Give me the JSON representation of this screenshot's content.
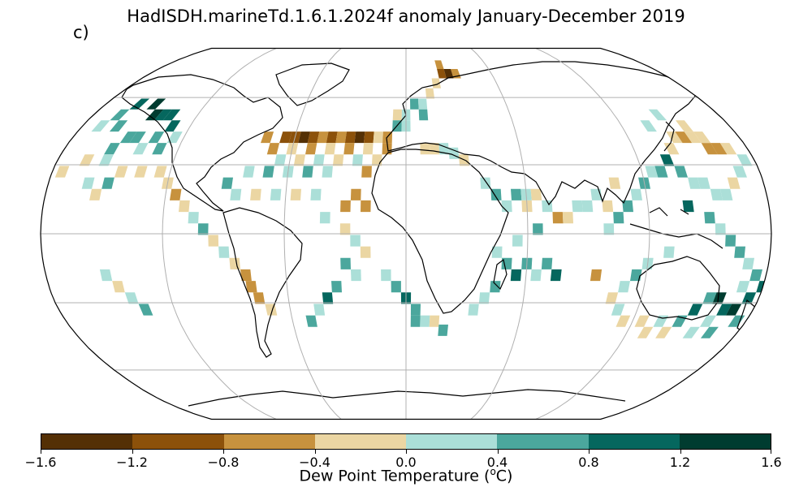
{
  "title": "HadISDH.marineTd.1.6.1.2024f anomaly January-December 2019",
  "panel_label": "c)",
  "colorbar": {
    "label_prefix": "Dew Point Temperature (",
    "label_sup": "o",
    "label_suffix": "C)",
    "ticks": [
      "−1.6",
      "−1.2",
      "−0.8",
      "−0.4",
      "0.0",
      "0.4",
      "0.8",
      "1.2",
      "1.6"
    ],
    "colors": [
      "#543005",
      "#8c510a",
      "#c7923e",
      "#ebd6a3",
      "#abdfd8",
      "#4ba79d",
      "#05675e",
      "#003c30"
    ]
  },
  "map_data": {
    "projection": "Robinson",
    "grid_cell_deg": 5,
    "cells": [
      {
        "lon": -160,
        "lat": 57,
        "bin": 6
      },
      {
        "lon": -150,
        "lat": 57,
        "bin": 7
      },
      {
        "lon": -145,
        "lat": 52,
        "bin": 7
      },
      {
        "lon": -140,
        "lat": 52,
        "bin": 6
      },
      {
        "lon": -135,
        "lat": 52,
        "bin": 6
      },
      {
        "lon": -130,
        "lat": 47,
        "bin": 6
      },
      {
        "lon": -165,
        "lat": 52,
        "bin": 5
      },
      {
        "lon": -170,
        "lat": 47,
        "bin": 4
      },
      {
        "lon": -160,
        "lat": 47,
        "bin": 5
      },
      {
        "lon": -150,
        "lat": 42,
        "bin": 5
      },
      {
        "lon": -145,
        "lat": 42,
        "bin": 5
      },
      {
        "lon": -140,
        "lat": 37,
        "bin": 4
      },
      {
        "lon": -135,
        "lat": 42,
        "bin": 5
      },
      {
        "lon": -130,
        "lat": 37,
        "bin": 5
      },
      {
        "lon": -125,
        "lat": 42,
        "bin": 4
      },
      {
        "lon": -155,
        "lat": 37,
        "bin": 5
      },
      {
        "lon": -165,
        "lat": 32,
        "bin": 3
      },
      {
        "lon": -155,
        "lat": 32,
        "bin": 4
      },
      {
        "lon": -175,
        "lat": 27,
        "bin": 3
      },
      {
        "lon": -145,
        "lat": 27,
        "bin": 3
      },
      {
        "lon": -135,
        "lat": 27,
        "bin": 3
      },
      {
        "lon": -125,
        "lat": 27,
        "bin": 3
      },
      {
        "lon": -120,
        "lat": 22,
        "bin": 3
      },
      {
        "lon": -115,
        "lat": 17,
        "bin": 2
      },
      {
        "lon": -160,
        "lat": 22,
        "bin": 4
      },
      {
        "lon": -150,
        "lat": 22,
        "bin": 5
      },
      {
        "lon": -155,
        "lat": 17,
        "bin": 3
      },
      {
        "lon": -110,
        "lat": 12,
        "bin": 3
      },
      {
        "lon": -105,
        "lat": 7,
        "bin": 4
      },
      {
        "lon": -100,
        "lat": 2,
        "bin": 5
      },
      {
        "lon": -95,
        "lat": -3,
        "bin": 3
      },
      {
        "lon": -90,
        "lat": -8,
        "bin": 4
      },
      {
        "lon": -85,
        "lat": -13,
        "bin": 3
      },
      {
        "lon": -80,
        "lat": -18,
        "bin": 2
      },
      {
        "lon": -78,
        "lat": -23,
        "bin": 2
      },
      {
        "lon": -75,
        "lat": -28,
        "bin": 2
      },
      {
        "lon": -70,
        "lat": -33,
        "bin": 3
      },
      {
        "lon": -150,
        "lat": -18,
        "bin": 4
      },
      {
        "lon": -145,
        "lat": -23,
        "bin": 3
      },
      {
        "lon": -140,
        "lat": -28,
        "bin": 4
      },
      {
        "lon": -135,
        "lat": -33,
        "bin": 5
      },
      {
        "lon": -75,
        "lat": 42,
        "bin": 2
      },
      {
        "lon": -65,
        "lat": 42,
        "bin": 1
      },
      {
        "lon": -60,
        "lat": 42,
        "bin": 1
      },
      {
        "lon": -55,
        "lat": 42,
        "bin": 0
      },
      {
        "lon": -50,
        "lat": 42,
        "bin": 1
      },
      {
        "lon": -45,
        "lat": 42,
        "bin": 2
      },
      {
        "lon": -40,
        "lat": 42,
        "bin": 1
      },
      {
        "lon": -35,
        "lat": 42,
        "bin": 2
      },
      {
        "lon": -30,
        "lat": 42,
        "bin": 1
      },
      {
        "lon": -25,
        "lat": 42,
        "bin": 0
      },
      {
        "lon": -20,
        "lat": 42,
        "bin": 1
      },
      {
        "lon": -15,
        "lat": 42,
        "bin": 3
      },
      {
        "lon": -10,
        "lat": 42,
        "bin": 2
      },
      {
        "lon": -70,
        "lat": 37,
        "bin": 2
      },
      {
        "lon": -60,
        "lat": 37,
        "bin": 3
      },
      {
        "lon": -50,
        "lat": 37,
        "bin": 2
      },
      {
        "lon": -40,
        "lat": 37,
        "bin": 3
      },
      {
        "lon": -30,
        "lat": 37,
        "bin": 2
      },
      {
        "lon": -20,
        "lat": 37,
        "bin": 3
      },
      {
        "lon": -10,
        "lat": 37,
        "bin": 2
      },
      {
        "lon": -65,
        "lat": 32,
        "bin": 4
      },
      {
        "lon": -55,
        "lat": 32,
        "bin": 3
      },
      {
        "lon": -45,
        "lat": 32,
        "bin": 4
      },
      {
        "lon": -35,
        "lat": 32,
        "bin": 3
      },
      {
        "lon": -25,
        "lat": 32,
        "bin": 4
      },
      {
        "lon": -15,
        "lat": 32,
        "bin": 3
      },
      {
        "lon": -80,
        "lat": 27,
        "bin": 4
      },
      {
        "lon": -70,
        "lat": 27,
        "bin": 5
      },
      {
        "lon": -60,
        "lat": 27,
        "bin": 4
      },
      {
        "lon": -50,
        "lat": 27,
        "bin": 5
      },
      {
        "lon": -40,
        "lat": 27,
        "bin": 4
      },
      {
        "lon": -20,
        "lat": 27,
        "bin": 2
      },
      {
        "lon": -90,
        "lat": 22,
        "bin": 5
      },
      {
        "lon": -85,
        "lat": 17,
        "bin": 4
      },
      {
        "lon": -75,
        "lat": 17,
        "bin": 3
      },
      {
        "lon": -65,
        "lat": 17,
        "bin": 4
      },
      {
        "lon": -55,
        "lat": 17,
        "bin": 3
      },
      {
        "lon": -45,
        "lat": 17,
        "bin": 4
      },
      {
        "lon": -25,
        "lat": 17,
        "bin": 2
      },
      {
        "lon": -20,
        "lat": 12,
        "bin": 2
      },
      {
        "lon": -30,
        "lat": 12,
        "bin": 2
      },
      {
        "lon": -40,
        "lat": 7,
        "bin": 4
      },
      {
        "lon": -30,
        "lat": 2,
        "bin": 3
      },
      {
        "lon": -25,
        "lat": -3,
        "bin": 4
      },
      {
        "lon": -20,
        "lat": -8,
        "bin": 3
      },
      {
        "lon": -30,
        "lat": -13,
        "bin": 5
      },
      {
        "lon": -25,
        "lat": -18,
        "bin": 4
      },
      {
        "lon": -35,
        "lat": -23,
        "bin": 5
      },
      {
        "lon": -40,
        "lat": -28,
        "bin": 6
      },
      {
        "lon": -45,
        "lat": -33,
        "bin": 4
      },
      {
        "lon": -50,
        "lat": -38,
        "bin": 5
      },
      {
        "lon": -10,
        "lat": -18,
        "bin": 4
      },
      {
        "lon": -5,
        "lat": -23,
        "bin": 5
      },
      {
        "lon": 0,
        "lat": -28,
        "bin": 6
      },
      {
        "lon": 5,
        "lat": -33,
        "bin": 5
      },
      {
        "lon": 10,
        "lat": -38,
        "bin": 4
      },
      {
        "lon": 5,
        "lat": -38,
        "bin": 5
      },
      {
        "lon": 15,
        "lat": -38,
        "bin": 3
      },
      {
        "lon": 20,
        "lat": -42,
        "bin": 5
      },
      {
        "lon": 0,
        "lat": 52,
        "bin": 4
      },
      {
        "lon": -5,
        "lat": 52,
        "bin": 3
      },
      {
        "lon": 5,
        "lat": 57,
        "bin": 5
      },
      {
        "lon": 10,
        "lat": 57,
        "bin": 4
      },
      {
        "lon": 15,
        "lat": 62,
        "bin": 3
      },
      {
        "lon": 20,
        "lat": 67,
        "bin": 3
      },
      {
        "lon": 25,
        "lat": 72,
        "bin": 1
      },
      {
        "lon": 30,
        "lat": 72,
        "bin": 0
      },
      {
        "lon": 35,
        "lat": 72,
        "bin": 2
      },
      {
        "lon": 25,
        "lat": 77,
        "bin": 2
      },
      {
        "lon": 10,
        "lat": 52,
        "bin": 5
      },
      {
        "lon": 0,
        "lat": 47,
        "bin": 4
      },
      {
        "lon": -5,
        "lat": 47,
        "bin": 5
      },
      {
        "lon": 10,
        "lat": 37,
        "bin": 3
      },
      {
        "lon": 15,
        "lat": 37,
        "bin": 3
      },
      {
        "lon": 20,
        "lat": 37,
        "bin": 4
      },
      {
        "lon": 25,
        "lat": 35,
        "bin": 4
      },
      {
        "lon": 30,
        "lat": 32,
        "bin": 3
      },
      {
        "lon": 40,
        "lat": 22,
        "bin": 4
      },
      {
        "lon": 45,
        "lat": 17,
        "bin": 5
      },
      {
        "lon": 50,
        "lat": 12,
        "bin": 4
      },
      {
        "lon": 55,
        "lat": 17,
        "bin": 5
      },
      {
        "lon": 60,
        "lat": 17,
        "bin": 4
      },
      {
        "lon": 65,
        "lat": 17,
        "bin": 3
      },
      {
        "lon": 60,
        "lat": 12,
        "bin": 3
      },
      {
        "lon": 70,
        "lat": 12,
        "bin": 4
      },
      {
        "lon": 75,
        "lat": 7,
        "bin": 2
      },
      {
        "lon": 80,
        "lat": 7,
        "bin": 3
      },
      {
        "lon": 85,
        "lat": 12,
        "bin": 4
      },
      {
        "lon": 90,
        "lat": 12,
        "bin": 4
      },
      {
        "lon": 65,
        "lat": 2,
        "bin": 5
      },
      {
        "lon": 55,
        "lat": -3,
        "bin": 4
      },
      {
        "lon": 45,
        "lat": -8,
        "bin": 4
      },
      {
        "lon": 50,
        "lat": -13,
        "bin": 5
      },
      {
        "lon": 55,
        "lat": -18,
        "bin": 6
      },
      {
        "lon": 60,
        "lat": -13,
        "bin": 5
      },
      {
        "lon": 65,
        "lat": -18,
        "bin": 4
      },
      {
        "lon": 70,
        "lat": -13,
        "bin": 5
      },
      {
        "lon": 75,
        "lat": -18,
        "bin": 6
      },
      {
        "lon": 45,
        "lat": -23,
        "bin": 5
      },
      {
        "lon": 40,
        "lat": -28,
        "bin": 4
      },
      {
        "lon": 35,
        "lat": -33,
        "bin": 4
      },
      {
        "lon": 100,
        "lat": 2,
        "bin": 4
      },
      {
        "lon": 105,
        "lat": 7,
        "bin": 5
      },
      {
        "lon": 110,
        "lat": 12,
        "bin": 5
      },
      {
        "lon": 115,
        "lat": 17,
        "bin": 4
      },
      {
        "lon": 120,
        "lat": 22,
        "bin": 5
      },
      {
        "lon": 125,
        "lat": 27,
        "bin": 4
      },
      {
        "lon": 130,
        "lat": 27,
        "bin": 5
      },
      {
        "lon": 135,
        "lat": 32,
        "bin": 6
      },
      {
        "lon": 140,
        "lat": 27,
        "bin": 5
      },
      {
        "lon": 145,
        "lat": 22,
        "bin": 4
      },
      {
        "lon": 150,
        "lat": 22,
        "bin": 4
      },
      {
        "lon": 155,
        "lat": 17,
        "bin": 4
      },
      {
        "lon": 160,
        "lat": 17,
        "bin": 4
      },
      {
        "lon": 165,
        "lat": 22,
        "bin": 3
      },
      {
        "lon": 170,
        "lat": 27,
        "bin": 4
      },
      {
        "lon": 140,
        "lat": 37,
        "bin": 3
      },
      {
        "lon": 145,
        "lat": 42,
        "bin": 3
      },
      {
        "lon": 150,
        "lat": 42,
        "bin": 2
      },
      {
        "lon": 155,
        "lat": 42,
        "bin": 3
      },
      {
        "lon": 160,
        "lat": 37,
        "bin": 2
      },
      {
        "lon": 165,
        "lat": 37,
        "bin": 2
      },
      {
        "lon": 170,
        "lat": 37,
        "bin": 3
      },
      {
        "lon": 175,
        "lat": 32,
        "bin": 4
      },
      {
        "lon": 135,
        "lat": 47,
        "bin": 4
      },
      {
        "lon": 145,
        "lat": 52,
        "bin": 4
      },
      {
        "lon": 155,
        "lat": 47,
        "bin": 3
      },
      {
        "lon": 160,
        "lat": 42,
        "bin": 3
      },
      {
        "lon": 140,
        "lat": 12,
        "bin": 6
      },
      {
        "lon": 150,
        "lat": 7,
        "bin": 5
      },
      {
        "lon": 155,
        "lat": 2,
        "bin": 4
      },
      {
        "lon": 160,
        "lat": -3,
        "bin": 5
      },
      {
        "lon": 165,
        "lat": -8,
        "bin": 5
      },
      {
        "lon": 170,
        "lat": -13,
        "bin": 4
      },
      {
        "lon": 175,
        "lat": -18,
        "bin": 5
      },
      {
        "lon": 180,
        "lat": -23,
        "bin": 6
      },
      {
        "lon": 130,
        "lat": -8,
        "bin": 4
      },
      {
        "lon": 120,
        "lat": -13,
        "bin": 4
      },
      {
        "lon": 115,
        "lat": -18,
        "bin": 5
      },
      {
        "lon": 110,
        "lat": -23,
        "bin": 4
      },
      {
        "lon": 105,
        "lat": -28,
        "bin": 3
      },
      {
        "lon": 110,
        "lat": -33,
        "bin": 4
      },
      {
        "lon": 115,
        "lat": -38,
        "bin": 3
      },
      {
        "lon": 125,
        "lat": -38,
        "bin": 3
      },
      {
        "lon": 135,
        "lat": -38,
        "bin": 4
      },
      {
        "lon": 145,
        "lat": -38,
        "bin": 5
      },
      {
        "lon": 150,
        "lat": -33,
        "bin": 6
      },
      {
        "lon": 155,
        "lat": -28,
        "bin": 5
      },
      {
        "lon": 160,
        "lat": -28,
        "bin": 7
      },
      {
        "lon": 165,
        "lat": -33,
        "bin": 6
      },
      {
        "lon": 170,
        "lat": -33,
        "bin": 7
      },
      {
        "lon": 175,
        "lat": -28,
        "bin": 6
      },
      {
        "lon": 170,
        "lat": -23,
        "bin": 4
      },
      {
        "lon": 175,
        "lat": -38,
        "bin": 5
      },
      {
        "lon": 165,
        "lat": -43,
        "bin": 5
      },
      {
        "lon": 160,
        "lat": -38,
        "bin": 4
      },
      {
        "lon": 155,
        "lat": -43,
        "bin": 4
      },
      {
        "lon": 140,
        "lat": -43,
        "bin": 3
      },
      {
        "lon": 130,
        "lat": -43,
        "bin": 3
      },
      {
        "lon": 95,
        "lat": -18,
        "bin": 2
      },
      {
        "lon": 105,
        "lat": 22,
        "bin": 3
      },
      {
        "lon": 95,
        "lat": 17,
        "bin": 4
      },
      {
        "lon": 100,
        "lat": 12,
        "bin": 3
      }
    ]
  }
}
